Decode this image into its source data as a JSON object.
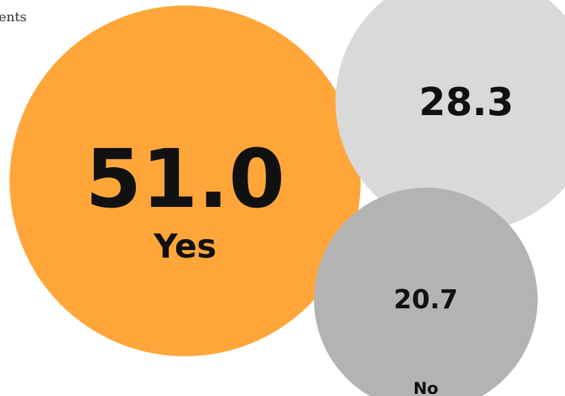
{
  "header": {
    "caption_fragment": "ents"
  },
  "chart_data": {
    "type": "bubble",
    "title": "",
    "categories": [
      "Yes",
      "",
      "No"
    ],
    "values": [
      51.0,
      28.3,
      20.7
    ],
    "value_labels": [
      "51.0",
      "28.3",
      "20.7"
    ],
    "category_labels": [
      "Yes",
      "",
      "No"
    ],
    "colors": [
      "#ffa63b",
      "#d9d9d9",
      "#b3b3b3"
    ],
    "unit": ""
  }
}
